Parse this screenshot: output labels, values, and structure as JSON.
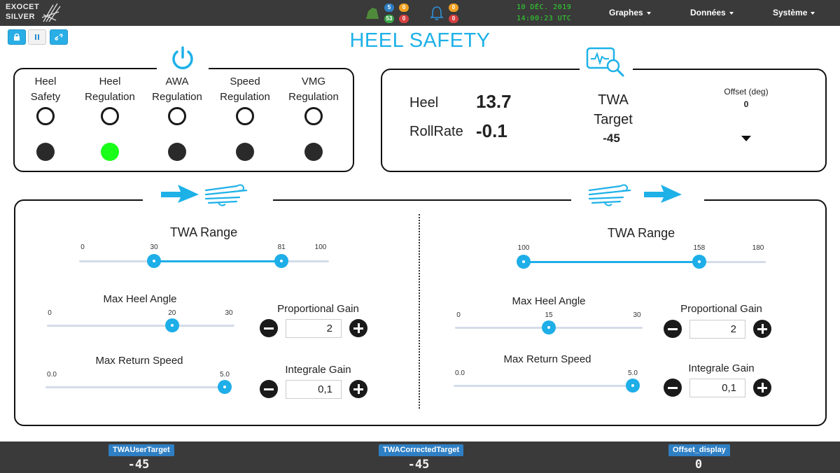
{
  "brand": {
    "line1": "EXOCET",
    "line2": "SILVER"
  },
  "status": {
    "badge_blue": "5",
    "badge_orange_top": "0",
    "badge_green": "53",
    "badge_red": "0",
    "bell_orange": "0",
    "bell_red": "0",
    "colors": {
      "blue": "#2e7fc4",
      "orange": "#f0a020",
      "green": "#3aa64a",
      "red": "#d64040"
    }
  },
  "clock": {
    "date": "10 DÉC. 2019",
    "time": "14:00:23 UTC"
  },
  "menu": {
    "graphs": "Graphes",
    "data": "Données",
    "system": "Système"
  },
  "page": {
    "title": "HEEL SAFETY",
    "accent": "#1eb1e8"
  },
  "regulation": {
    "columns": [
      {
        "line1": "Heel",
        "line2": "Safety",
        "active": false
      },
      {
        "line1": "Heel",
        "line2": "Regulation",
        "active": true
      },
      {
        "line1": "AWA",
        "line2": "Regulation",
        "active": false
      },
      {
        "line1": "Speed",
        "line2": "Regulation",
        "active": false
      },
      {
        "line1": "VMG",
        "line2": "Regulation",
        "active": false
      }
    ]
  },
  "readout": {
    "heel_label": "Heel",
    "heel_value": "13.7",
    "roll_label": "RollRate",
    "roll_value": "-0.1",
    "twa_label_1": "TWA",
    "twa_label_2": "Target",
    "twa_value": "-45",
    "offset_label": "Offset (deg)",
    "offset_value": "0"
  },
  "left_panel": {
    "twa_range": {
      "title": "TWA Range",
      "min": "0",
      "low": "30",
      "high": "81",
      "max": "100",
      "low_frac": 0.3,
      "high_frac": 0.81
    },
    "max_heel": {
      "title": "Max Heel Angle",
      "min": "0",
      "value": "20",
      "max": "30",
      "frac": 0.667
    },
    "max_return": {
      "title": "Max Return Speed",
      "min": "0.0",
      "value": "5.0",
      "frac": 1.0
    },
    "prop_gain": {
      "title": "Proportional Gain",
      "value": "2"
    },
    "int_gain": {
      "title": "Integrale Gain",
      "value": "0,1"
    }
  },
  "right_panel": {
    "twa_range": {
      "title": "TWA Range",
      "min": "100",
      "low": "100",
      "high": "158",
      "max": "180",
      "low_frac": 0.0,
      "high_frac": 0.725
    },
    "max_heel": {
      "title": "Max Heel Angle",
      "min": "0",
      "value": "15",
      "max": "30",
      "frac": 0.5
    },
    "max_return": {
      "title": "Max Return Speed",
      "min": "0.0",
      "value": "5.0",
      "frac": 1.0
    },
    "prop_gain": {
      "title": "Proportional Gain",
      "value": "2"
    },
    "int_gain": {
      "title": "Integrale Gain",
      "value": "0,1"
    }
  },
  "bottom": {
    "user_target_label": "TWAUserTarget",
    "user_target_value": "-45",
    "corrected_label": "TWACorrectedTarget",
    "corrected_value": "-45",
    "offset_label": "Offset_display",
    "offset_value": "0"
  }
}
